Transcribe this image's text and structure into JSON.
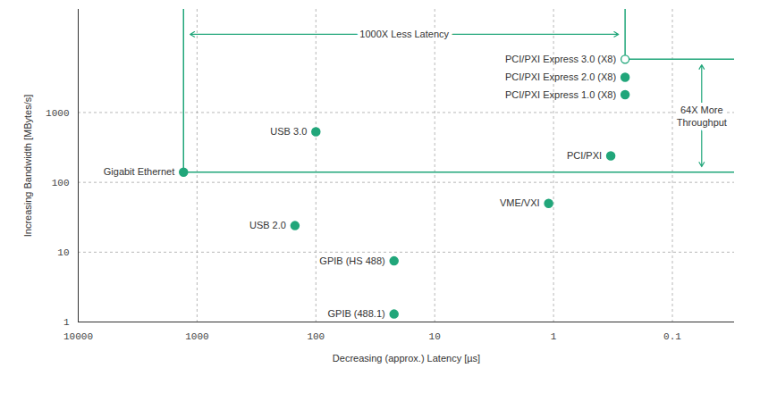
{
  "chart_data": {
    "type": "scatter",
    "x_label": "Decreasing (approx.) Latency [µs]",
    "y_label": "Increasing Bandwidth [MBytes/s]",
    "log": true,
    "grid": true,
    "xlim": [
      10000,
      0.03
    ],
    "xticks": [
      10000,
      1000,
      100,
      10,
      1,
      0.1
    ],
    "ylim": [
      1,
      30000
    ],
    "yticks": [
      1,
      10,
      100,
      1000
    ],
    "series": [
      {
        "color": "#21a67a",
        "marker": "filled",
        "labels": [
          "Gigabit Ethernet",
          "USB 3.0",
          "USB 2.0",
          "GPIB (HS 488)",
          "GPIB (488.1)",
          "VME/VXI",
          "PCI/PXI",
          "PCI/PXI Express 1.0 (X8)",
          "PCI/PXI Express 2.0 (X8)"
        ],
        "x": [
          1300,
          100,
          150,
          22,
          22,
          1.1,
          0.33,
          0.25,
          0.25
        ],
        "values": [
          140,
          530,
          24,
          7.5,
          1.3,
          50,
          240,
          1800,
          3200
        ]
      },
      {
        "color": "#21a67a",
        "marker": "open",
        "labels": [
          "PCI/PXI Express 3.0 (X8)"
        ],
        "x": [
          0.25
        ],
        "values": [
          5800
        ]
      }
    ],
    "annotations": {
      "x": {
        "text": "1000X Less Latency",
        "from": "Gigabit Ethernet",
        "to": "PCI/PXI Express 3.0 (X8)"
      },
      "y": {
        "text": "64X More Throughput",
        "from": "Gigabit Ethernet",
        "to": "PCI/PXI Express 3.0 (X8)"
      }
    }
  }
}
